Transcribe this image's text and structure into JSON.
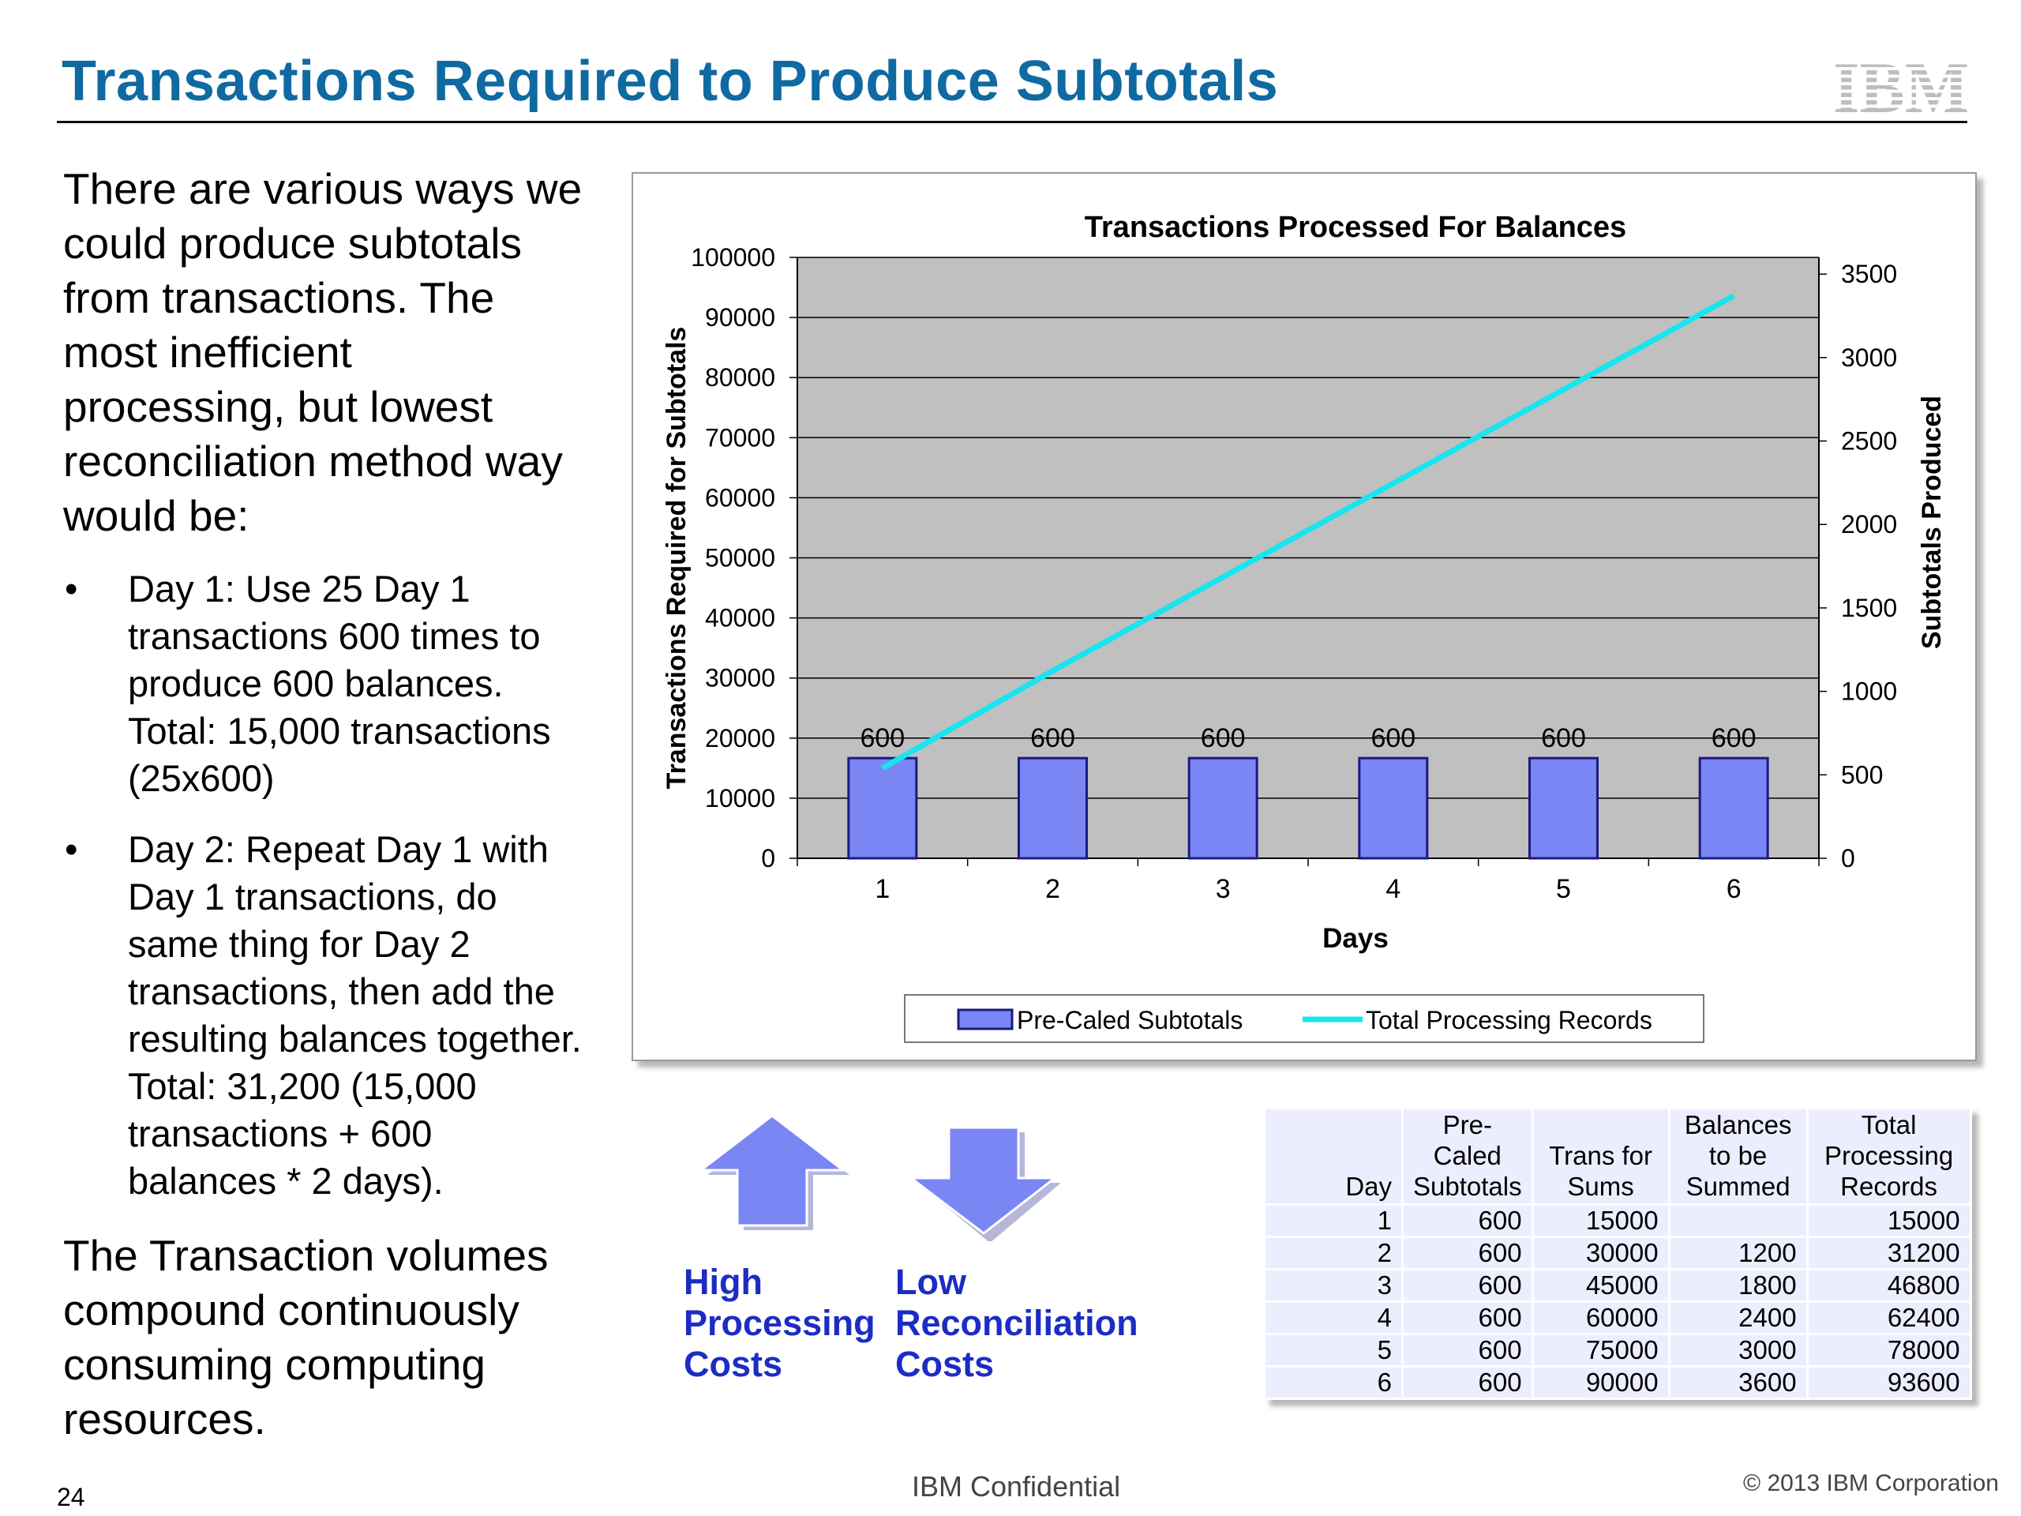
{
  "title": "Transactions Required to Produce Subtotals",
  "logo_text": "IBM",
  "intro": "There are various ways we could produce subtotals from transactions.  The most inefficient processing, but lowest reconciliation method way would be:",
  "bullet_symbol": "•",
  "bullets": [
    "Day 1: Use 25 Day 1 transactions 600 times to produce 600 balances. Total: 15,000 transactions (25x600)",
    "Day 2:  Repeat Day 1 with Day 1 transactions, do same thing for Day 2 transactions, then add the resulting balances together. Total: 31,200 (15,000 transactions + 600 balances * 2 days)."
  ],
  "closing": "The Transaction volumes compound continuously consuming computing resources.",
  "arrows": {
    "up_label": "High\nProcessing\nCosts",
    "down_label": "Low\nReconciliation\nCosts"
  },
  "table": {
    "headers": [
      "Day",
      "Pre-Caled Subtotals",
      "Trans for Sums",
      "Balances to be Summed",
      "Total Processing Records"
    ],
    "rows": [
      [
        "1",
        "600",
        "15000",
        "",
        "15000"
      ],
      [
        "2",
        "600",
        "30000",
        "1200",
        "31200"
      ],
      [
        "3",
        "600",
        "45000",
        "1800",
        "46800"
      ],
      [
        "4",
        "600",
        "60000",
        "2400",
        "62400"
      ],
      [
        "5",
        "600",
        "75000",
        "3000",
        "78000"
      ],
      [
        "6",
        "600",
        "90000",
        "3600",
        "93600"
      ]
    ]
  },
  "footer": {
    "page_number": "24",
    "confidential": "IBM Confidential",
    "copyright": "© 2013 IBM Corporation"
  },
  "colors": {
    "title": "#0f6aa1",
    "bar_fill": "#7b86f5",
    "bar_stroke": "#1a1a80",
    "line": "#17e5ef",
    "plot_bg": "#c0c0c0",
    "arrow": "#7b86f5",
    "cost_label": "#1c2cc4"
  },
  "chart_data": {
    "type": "bar",
    "title": "Transactions Processed For Balances",
    "categories": [
      "1",
      "2",
      "3",
      "4",
      "5",
      "6"
    ],
    "xlabel": "Days",
    "ylabel": "Transactions Required for Subtotals",
    "y2label": "Subtotals Produced",
    "ylim": [
      0,
      100000
    ],
    "yticks": [
      0,
      10000,
      20000,
      30000,
      40000,
      50000,
      60000,
      70000,
      80000,
      90000,
      100000
    ],
    "y2lim": [
      0,
      3600
    ],
    "y2ticks": [
      0,
      500,
      1000,
      1500,
      2000,
      2500,
      3000,
      3500
    ],
    "grid": true,
    "legend_position": "bottom",
    "series": [
      {
        "name": "Pre-Caled Subtotals",
        "type": "bar",
        "axis": "y2",
        "values": [
          600,
          600,
          600,
          600,
          600,
          600
        ],
        "labels": [
          "600",
          "600",
          "600",
          "600",
          "600",
          "600"
        ]
      },
      {
        "name": "Total Processing Records",
        "type": "line",
        "axis": "y",
        "values": [
          15000,
          31200,
          46800,
          62400,
          78000,
          93600
        ]
      }
    ]
  }
}
